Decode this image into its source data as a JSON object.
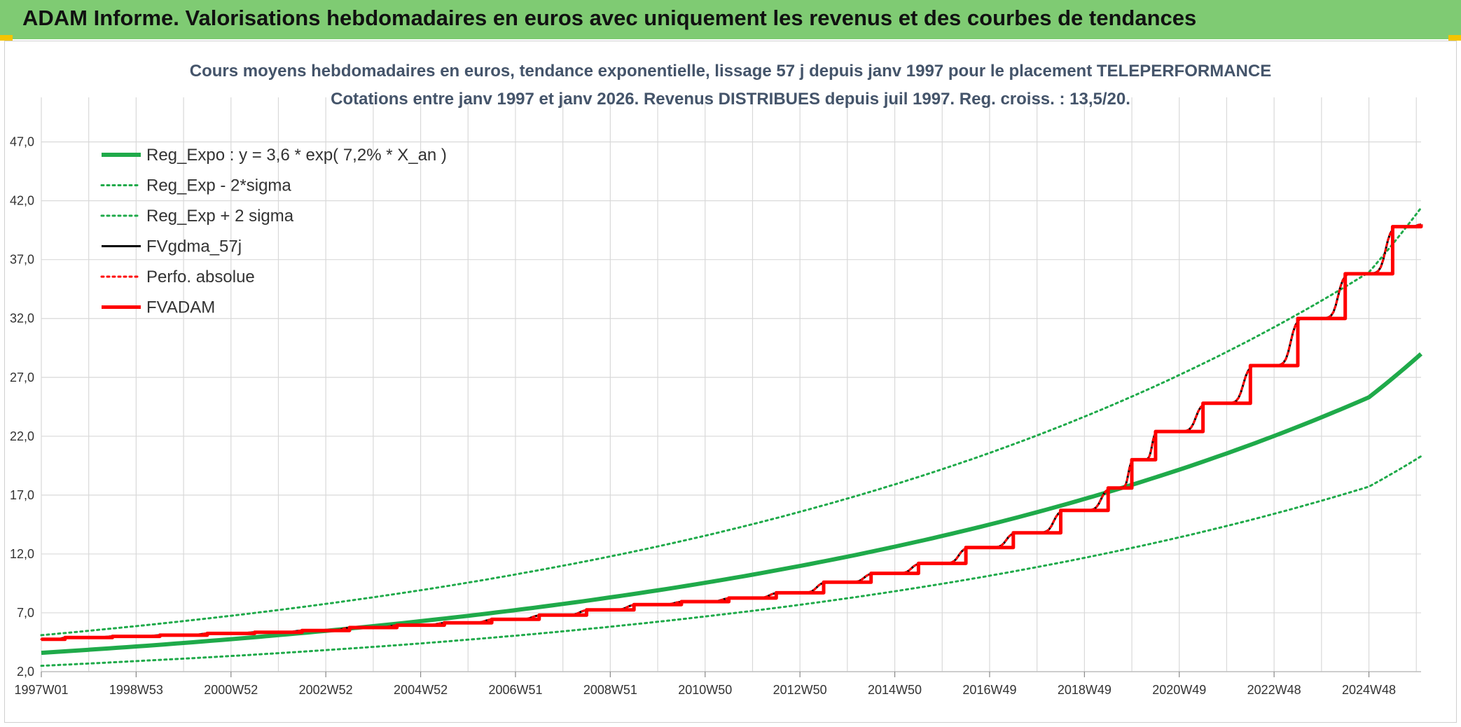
{
  "banner": {
    "title": "ADAM Informe. Valorisations hebdomadaires en euros avec uniquement les revenus et des courbes de tendances"
  },
  "colors": {
    "banner": "#7fcb73",
    "green": "#1faa4a",
    "red": "#ff0000",
    "black": "#000000",
    "grid": "#d9d9d9"
  },
  "chart_data": {
    "type": "line",
    "title": "Cours moyens hebdomadaires en euros, tendance exponentielle, lissage 57 j depuis janv 1997 pour le placement TELEPERFORMANCE",
    "subtitle": "Cotations entre janv 1997 et janv 2026. Revenus DISTRIBUES depuis juil 1997. Reg. croiss. : 13,5/20.",
    "xlabel": "",
    "ylabel": "",
    "ylim": [
      2,
      49
    ],
    "xlim": [
      1997.0,
      2026.1
    ],
    "grid": true,
    "legend_position": "top-left",
    "y_ticks": [
      "2,0",
      "7,0",
      "12,0",
      "17,0",
      "22,0",
      "27,0",
      "32,0",
      "37,0",
      "42,0",
      "47,0"
    ],
    "y_tick_values": [
      2,
      7,
      12,
      17,
      22,
      27,
      32,
      37,
      42,
      47
    ],
    "x_ticks": [
      "1997W01",
      "1998W53",
      "2000W52",
      "2002W52",
      "2004W52",
      "2006W51",
      "2008W51",
      "2010W50",
      "2012W50",
      "2014W50",
      "2016W49",
      "2018W49",
      "2020W49",
      "2022W48",
      "2024W48"
    ],
    "x_tick_years": [
      1997.0,
      1999.0,
      2001.0,
      2003.0,
      2005.0,
      2007.0,
      2009.0,
      2011.0,
      2013.0,
      2015.0,
      2017.0,
      2019.0,
      2021.0,
      2023.0,
      2025.0
    ],
    "series": [
      {
        "name": "Reg_Expo : y = 3,6 * exp( 7,2% *  X_an )",
        "style": "solid-thick",
        "color": "#1faa4a",
        "x": [
          1997.0,
          1999.0,
          2001.0,
          2003.0,
          2005.0,
          2007.0,
          2009.0,
          2011.0,
          2013.0,
          2015.0,
          2017.0,
          2019.0,
          2021.0,
          2023.0,
          2025.0,
          2026.1
        ],
        "y": [
          3.6,
          4.14,
          4.76,
          5.47,
          6.29,
          7.23,
          8.31,
          9.55,
          10.98,
          12.62,
          14.5,
          16.67,
          19.16,
          22.02,
          25.31,
          29.0
        ]
      },
      {
        "name": "Reg_Exp - 2*sigma",
        "style": "dotted",
        "color": "#1faa4a",
        "x": [
          1997.0,
          1999.0,
          2001.0,
          2003.0,
          2005.0,
          2007.0,
          2009.0,
          2011.0,
          2013.0,
          2015.0,
          2017.0,
          2019.0,
          2021.0,
          2023.0,
          2025.0,
          2026.1
        ],
        "y": [
          2.5,
          2.9,
          3.33,
          3.83,
          4.4,
          5.06,
          5.82,
          6.69,
          7.68,
          8.83,
          10.15,
          11.67,
          13.41,
          15.41,
          17.72,
          20.3
        ]
      },
      {
        "name": "Reg_Exp + 2 sigma",
        "style": "dotted",
        "color": "#1faa4a",
        "x": [
          1997.0,
          1999.0,
          2001.0,
          2003.0,
          2005.0,
          2007.0,
          2009.0,
          2011.0,
          2013.0,
          2015.0,
          2017.0,
          2019.0,
          2021.0,
          2023.0,
          2025.0,
          2026.1
        ],
        "y": [
          5.1,
          5.87,
          6.75,
          7.76,
          8.92,
          10.26,
          11.79,
          13.55,
          15.58,
          17.91,
          20.58,
          23.66,
          27.2,
          31.26,
          35.93,
          41.4
        ]
      },
      {
        "name": "FVgdma_57j",
        "style": "solid",
        "color": "#000000",
        "x": [
          1997.0,
          1997.5,
          1998.5,
          1999.5,
          2000.5,
          2001.5,
          2002.5,
          2003.5,
          2004.5,
          2005.5,
          2006.5,
          2007.5,
          2008.5,
          2009.5,
          2010.5,
          2011.5,
          2012.5,
          2013.5,
          2014.5,
          2015.5,
          2016.5,
          2017.5,
          2018.5,
          2019.5,
          2020.0,
          2020.5,
          2021.5,
          2022.5,
          2023.5,
          2024.5,
          2025.5,
          2026.1
        ],
        "y": [
          4.75,
          4.9,
          5.0,
          5.1,
          5.25,
          5.35,
          5.5,
          5.75,
          5.95,
          6.15,
          6.45,
          6.8,
          7.25,
          7.7,
          7.95,
          8.25,
          8.7,
          9.6,
          10.35,
          11.2,
          12.55,
          13.8,
          15.7,
          17.6,
          20.0,
          22.4,
          24.8,
          28.0,
          32.0,
          35.8,
          39.8,
          40.0
        ]
      },
      {
        "name": "Perfo. absolue",
        "style": "dotted",
        "color": "#ff0000",
        "x": [
          1997.0,
          1997.5,
          1998.5,
          1999.5,
          2000.5,
          2001.5,
          2002.5,
          2003.5,
          2004.5,
          2005.5,
          2006.5,
          2007.5,
          2008.5,
          2009.5,
          2010.5,
          2011.5,
          2012.5,
          2013.5,
          2014.5,
          2015.5,
          2016.5,
          2017.5,
          2018.5,
          2019.5,
          2020.0,
          2020.5,
          2021.5,
          2022.5,
          2023.5,
          2024.5,
          2025.5,
          2026.1
        ],
        "y": [
          4.75,
          4.9,
          5.0,
          5.1,
          5.25,
          5.35,
          5.5,
          5.75,
          5.95,
          6.15,
          6.45,
          6.8,
          7.25,
          7.7,
          7.95,
          8.25,
          8.7,
          9.6,
          10.35,
          11.2,
          12.55,
          13.8,
          15.7,
          17.6,
          20.0,
          22.4,
          24.8,
          28.0,
          32.0,
          35.8,
          39.8,
          40.0
        ]
      },
      {
        "name": "FVADAM",
        "style": "step-thick",
        "color": "#ff0000",
        "x": [
          1997.0,
          1997.5,
          1998.5,
          1999.5,
          2000.5,
          2001.5,
          2002.5,
          2003.5,
          2004.5,
          2005.5,
          2006.5,
          2007.5,
          2008.5,
          2009.5,
          2010.5,
          2011.5,
          2012.5,
          2013.5,
          2014.5,
          2015.5,
          2016.5,
          2017.5,
          2018.5,
          2019.5,
          2020.0,
          2020.5,
          2021.5,
          2022.5,
          2023.5,
          2024.5,
          2025.5,
          2026.1
        ],
        "y": [
          4.75,
          4.9,
          5.0,
          5.1,
          5.25,
          5.35,
          5.5,
          5.75,
          5.95,
          6.15,
          6.45,
          6.8,
          7.25,
          7.7,
          7.95,
          8.25,
          8.7,
          9.6,
          10.35,
          11.2,
          12.55,
          13.8,
          15.7,
          17.6,
          20.0,
          22.4,
          24.8,
          28.0,
          32.0,
          35.8,
          39.8,
          40.0
        ]
      }
    ]
  }
}
